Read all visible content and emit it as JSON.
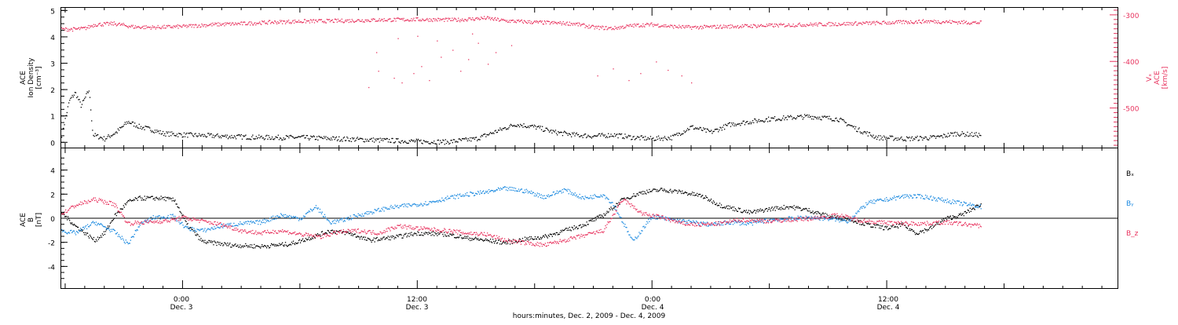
{
  "colors": {
    "ink": "#000000",
    "red": "#e8345f",
    "blue": "#1c8ae0"
  },
  "xaxis": {
    "label": "hours:minutes, Dec.  2, 2009 - Dec.  4, 2009",
    "ticks": [
      {
        "time": "0:00",
        "date": "Dec. 3",
        "hours_from_dec2": 24
      },
      {
        "time": "12:00",
        "date": "Dec. 3",
        "hours_from_dec2": 36
      },
      {
        "time": "0:00",
        "date": "Dec. 4",
        "hours_from_dec2": 48
      },
      {
        "time": "12:00",
        "date": "Dec. 4",
        "hours_from_dec2": 60
      }
    ],
    "range_hours_from_dec2": [
      17.8,
      71.8
    ],
    "data_end_hours_from_dec2": 64.8
  },
  "chart_data": [
    {
      "type": "scatter",
      "panel": "top",
      "ylabel_left": [
        "ACE",
        "Ion Density",
        "[cm⁻³]"
      ],
      "ylabel_right": [
        "Vₓ",
        "ACE",
        "[km/s]"
      ],
      "ylim_left": [
        -0.2,
        5.1
      ],
      "ylim_right": [
        -585,
        -285
      ],
      "yticks_left": [
        0,
        1,
        2,
        3,
        4,
        5
      ],
      "yticks_right": [
        -300,
        -400,
        -500
      ],
      "series": [
        {
          "axis": "left",
          "color": "#000000",
          "points": [
            [
              17.8,
              0.3
            ],
            [
              18.2,
              1.6
            ],
            [
              18.5,
              1.9
            ],
            [
              18.8,
              1.4
            ],
            [
              19.2,
              2.0
            ],
            [
              19.4,
              0.3
            ],
            [
              20.0,
              0.15
            ],
            [
              20.6,
              0.4
            ],
            [
              21.2,
              0.8
            ],
            [
              21.8,
              0.6
            ],
            [
              22.4,
              0.5
            ],
            [
              23.0,
              0.35
            ],
            [
              24.0,
              0.3
            ],
            [
              26.0,
              0.25
            ],
            [
              28.0,
              0.2
            ],
            [
              30.0,
              0.2
            ],
            [
              32.0,
              0.15
            ],
            [
              34.0,
              0.1
            ],
            [
              36.0,
              0.05
            ],
            [
              37.5,
              0.03
            ],
            [
              39.0,
              0.15
            ],
            [
              41.0,
              0.7
            ],
            [
              42.0,
              0.6
            ],
            [
              43.0,
              0.4
            ],
            [
              44.0,
              0.3
            ],
            [
              45.0,
              0.25
            ],
            [
              46.0,
              0.3
            ],
            [
              47.0,
              0.2
            ],
            [
              48.0,
              0.15
            ],
            [
              49.0,
              0.2
            ],
            [
              50.0,
              0.6
            ],
            [
              51.0,
              0.4
            ],
            [
              52.0,
              0.7
            ],
            [
              54.0,
              0.9
            ],
            [
              56.0,
              1.0
            ],
            [
              57.5,
              0.9
            ],
            [
              58.5,
              0.5
            ],
            [
              59.5,
              0.2
            ],
            [
              61.0,
              0.15
            ],
            [
              62.5,
              0.2
            ],
            [
              63.5,
              0.35
            ],
            [
              64.5,
              0.3
            ]
          ]
        },
        {
          "axis": "right",
          "color": "#e8345f",
          "points": [
            [
              17.8,
              -330
            ],
            [
              18.5,
              -330
            ],
            [
              19.0,
              -328
            ],
            [
              19.5,
              -320
            ],
            [
              20.5,
              -318
            ],
            [
              21.5,
              -325
            ],
            [
              22.5,
              -326
            ],
            [
              24.0,
              -324
            ],
            [
              25.5,
              -320
            ],
            [
              27.0,
              -318
            ],
            [
              28.5,
              -315
            ],
            [
              30.0,
              -313
            ],
            [
              32.0,
              -312
            ],
            [
              34.0,
              -310
            ],
            [
              36.0,
              -309
            ],
            [
              38.0,
              -310
            ],
            [
              39.5,
              -306
            ],
            [
              40.5,
              -312
            ],
            [
              42.0,
              -315
            ],
            [
              44.0,
              -318
            ],
            [
              45.0,
              -326
            ],
            [
              46.0,
              -328
            ],
            [
              47.0,
              -322
            ],
            [
              48.0,
              -320
            ],
            [
              49.0,
              -324
            ],
            [
              50.0,
              -326
            ],
            [
              52.0,
              -324
            ],
            [
              54.0,
              -322
            ],
            [
              56.0,
              -320
            ],
            [
              58.0,
              -318
            ],
            [
              60.0,
              -316
            ],
            [
              62.0,
              -313
            ],
            [
              64.8,
              -316
            ]
          ]
        }
      ]
    },
    {
      "type": "line",
      "panel": "bottom",
      "ylabel_left": [
        "ACE",
        "B",
        "[nT]"
      ],
      "ylim": [
        -5.8,
        5.8
      ],
      "yticks": [
        -4,
        -2,
        0,
        2,
        4
      ],
      "legend_placement": "right",
      "series": [
        {
          "name": "Bₓ",
          "color": "#000000",
          "points": [
            [
              17.8,
              0.5
            ],
            [
              18.5,
              -0.6
            ],
            [
              19.5,
              -1.8
            ],
            [
              20.0,
              -1.2
            ],
            [
              20.5,
              0.2
            ],
            [
              21.2,
              1.4
            ],
            [
              21.8,
              1.7
            ],
            [
              23.0,
              1.7
            ],
            [
              23.6,
              1.5
            ],
            [
              24.2,
              -0.5
            ],
            [
              25.0,
              -1.9
            ],
            [
              26.5,
              -2.2
            ],
            [
              28.0,
              -2.3
            ],
            [
              29.5,
              -2.1
            ],
            [
              30.5,
              -1.6
            ],
            [
              31.5,
              -1.0
            ],
            [
              32.5,
              -1.2
            ],
            [
              33.5,
              -1.8
            ],
            [
              35.0,
              -1.5
            ],
            [
              36.0,
              -1.2
            ],
            [
              37.5,
              -1.3
            ],
            [
              38.5,
              -1.6
            ],
            [
              39.5,
              -1.8
            ],
            [
              40.5,
              -2.0
            ],
            [
              41.5,
              -1.7
            ],
            [
              42.5,
              -1.5
            ],
            [
              43.5,
              -1.0
            ],
            [
              44.5,
              -0.5
            ],
            [
              45.5,
              0.3
            ],
            [
              46.5,
              1.6
            ],
            [
              47.5,
              2.2
            ],
            [
              48.5,
              2.4
            ],
            [
              49.5,
              2.2
            ],
            [
              50.5,
              1.9
            ],
            [
              51.5,
              1.1
            ],
            [
              53.0,
              0.5
            ],
            [
              54.0,
              0.8
            ],
            [
              55.0,
              1.0
            ],
            [
              56.0,
              0.7
            ],
            [
              57.0,
              0.2
            ],
            [
              58.0,
              0.0
            ],
            [
              59.0,
              -0.5
            ],
            [
              60.0,
              -0.8
            ],
            [
              60.8,
              -0.5
            ],
            [
              61.5,
              -1.2
            ],
            [
              62.2,
              -0.8
            ],
            [
              63.0,
              0.0
            ],
            [
              63.8,
              0.3
            ],
            [
              64.8,
              1.2
            ]
          ]
        },
        {
          "name": "Bᵧ",
          "color": "#1c8ae0",
          "points": [
            [
              17.8,
              -1.0
            ],
            [
              18.5,
              -1.2
            ],
            [
              19.5,
              -0.3
            ],
            [
              20.5,
              -1.1
            ],
            [
              21.2,
              -2.1
            ],
            [
              21.8,
              -0.5
            ],
            [
              22.5,
              0.1
            ],
            [
              23.5,
              0.2
            ],
            [
              24.2,
              -0.8
            ],
            [
              25.0,
              -1.0
            ],
            [
              26.0,
              -0.6
            ],
            [
              27.0,
              -0.4
            ],
            [
              28.0,
              -0.3
            ],
            [
              29.0,
              0.3
            ],
            [
              30.0,
              0.0
            ],
            [
              30.8,
              1.0
            ],
            [
              31.5,
              -0.3
            ],
            [
              32.0,
              -0.2
            ],
            [
              33.0,
              0.3
            ],
            [
              34.5,
              0.9
            ],
            [
              35.5,
              1.1
            ],
            [
              36.5,
              1.3
            ],
            [
              37.5,
              1.7
            ],
            [
              38.5,
              2.0
            ],
            [
              39.5,
              2.2
            ],
            [
              40.5,
              2.5
            ],
            [
              41.5,
              2.3
            ],
            [
              42.5,
              1.8
            ],
            [
              43.5,
              2.4
            ],
            [
              44.5,
              1.7
            ],
            [
              45.5,
              2.0
            ],
            [
              46.0,
              1.2
            ],
            [
              46.5,
              -0.3
            ],
            [
              47.0,
              -1.9
            ],
            [
              48.0,
              0.2
            ],
            [
              49.0,
              -0.1
            ],
            [
              50.0,
              -0.3
            ],
            [
              51.0,
              -0.5
            ],
            [
              52.0,
              -0.3
            ],
            [
              53.0,
              -0.4
            ],
            [
              54.0,
              -0.1
            ],
            [
              55.0,
              0.0
            ],
            [
              56.0,
              0.1
            ],
            [
              57.0,
              0.0
            ],
            [
              58.0,
              -0.2
            ],
            [
              59.0,
              1.3
            ],
            [
              60.0,
              1.6
            ],
            [
              61.0,
              1.9
            ],
            [
              62.0,
              1.8
            ],
            [
              63.0,
              1.5
            ],
            [
              64.0,
              1.2
            ],
            [
              64.8,
              1.0
            ]
          ]
        },
        {
          "name": "B_z",
          "color": "#e8345f",
          "points": [
            [
              17.8,
              0.4
            ],
            [
              18.5,
              1.1
            ],
            [
              19.5,
              1.6
            ],
            [
              20.5,
              1.2
            ],
            [
              21.2,
              -0.4
            ],
            [
              22.0,
              -0.3
            ],
            [
              23.0,
              -0.2
            ],
            [
              23.5,
              -0.1
            ],
            [
              24.0,
              0.1
            ],
            [
              25.0,
              -0.2
            ],
            [
              26.0,
              -0.5
            ],
            [
              27.0,
              -1.0
            ],
            [
              28.0,
              -1.2
            ],
            [
              29.0,
              -1.0
            ],
            [
              30.0,
              -1.3
            ],
            [
              31.0,
              -1.5
            ],
            [
              32.0,
              -1.1
            ],
            [
              33.0,
              -1.0
            ],
            [
              34.0,
              -1.2
            ],
            [
              35.0,
              -0.6
            ],
            [
              36.0,
              -0.8
            ],
            [
              37.5,
              -1.0
            ],
            [
              38.5,
              -1.2
            ],
            [
              39.5,
              -1.3
            ],
            [
              40.5,
              -1.8
            ],
            [
              41.5,
              -2.0
            ],
            [
              42.5,
              -2.2
            ],
            [
              43.5,
              -1.8
            ],
            [
              44.5,
              -1.4
            ],
            [
              45.5,
              -1.0
            ],
            [
              46.0,
              0.3
            ],
            [
              46.5,
              1.6
            ],
            [
              47.5,
              0.4
            ],
            [
              48.5,
              0.1
            ],
            [
              49.5,
              -0.4
            ],
            [
              50.5,
              -0.5
            ],
            [
              51.5,
              -0.4
            ],
            [
              52.5,
              -0.1
            ],
            [
              54.0,
              -0.2
            ],
            [
              56.0,
              0.0
            ],
            [
              57.5,
              0.3
            ],
            [
              58.5,
              -0.1
            ],
            [
              59.5,
              -0.3
            ],
            [
              61.0,
              -0.4
            ],
            [
              62.0,
              -0.4
            ],
            [
              63.0,
              -0.3
            ],
            [
              64.8,
              -0.6
            ]
          ]
        }
      ]
    }
  ]
}
